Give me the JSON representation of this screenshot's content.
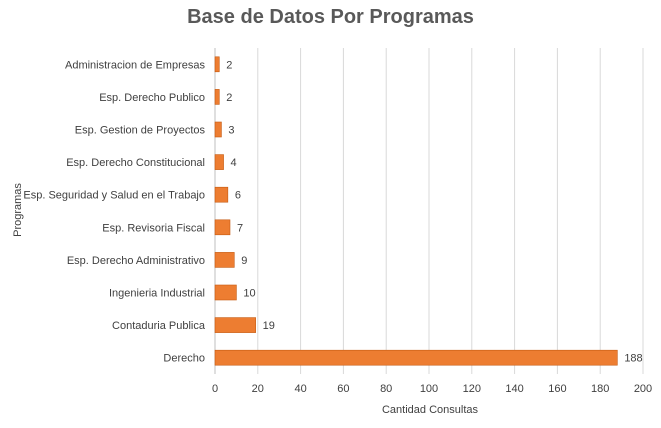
{
  "chart_data": {
    "type": "bar",
    "orientation": "horizontal",
    "title": "Base de Datos Por Programas",
    "xlabel": "Cantidad Consultas",
    "ylabel": "Programas",
    "xlim": [
      0,
      200
    ],
    "xticks": [
      0,
      20,
      40,
      60,
      80,
      100,
      120,
      140,
      160,
      180,
      200
    ],
    "grid": true,
    "categories": [
      "Administracion de Empresas",
      "Esp. Derecho Publico",
      "Esp. Gestion de Proyectos",
      "Esp. Derecho Constitucional",
      "Esp. Seguridad y Salud en el Trabajo",
      "Esp. Revisoria Fiscal",
      "Esp. Derecho Administrativo",
      "Ingenieria Industrial",
      "Contaduria Publica",
      "Derecho"
    ],
    "values": [
      2,
      2,
      3,
      4,
      6,
      7,
      9,
      10,
      19,
      188
    ],
    "bar_color": "#ED7D31",
    "bar_edge_color": "#C55A11",
    "grid_color": "#D9D9D9"
  }
}
